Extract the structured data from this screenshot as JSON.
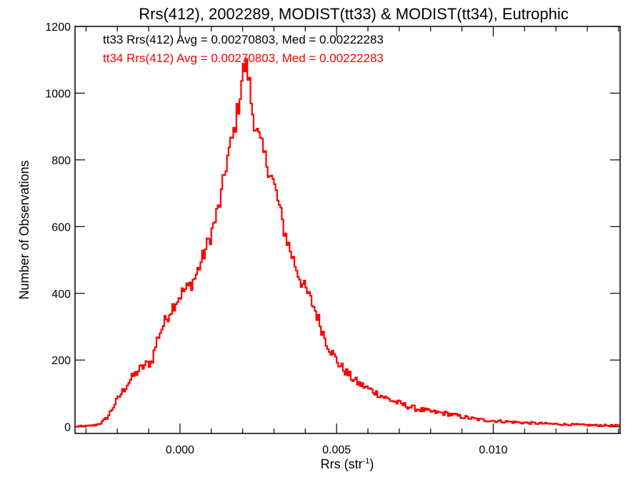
{
  "chart_data": {
    "type": "histogram",
    "title": "Rrs(412), 2002289, MODIST(tt33) & MODIST(tt34), Eutrophic",
    "xlabel": "Rrs (str",
    "xlabel_sup": "-1",
    "xlabel_close": ")",
    "ylabel": "Number of Observations",
    "xlim": [
      -0.00335,
      0.01405
    ],
    "ylim": [
      -20,
      1200
    ],
    "x_ticks": [
      0.0,
      0.005,
      0.01
    ],
    "x_tick_labels": [
      "0.000",
      "0.005",
      "0.010"
    ],
    "y_ticks": [
      0,
      200,
      400,
      600,
      800,
      1000,
      1200
    ],
    "y_tick_labels": [
      "0",
      "200",
      "400",
      "600",
      "800",
      "1000",
      "1200"
    ],
    "annotations": [
      {
        "text": "tt33 Rrs(412) Avg = 0.00270803, Med = 0.00222283",
        "color": "#000000"
      },
      {
        "text": "tt34 Rrs(412) Avg = 0.00270803, Med = 0.00222283",
        "color": "#ff0000"
      }
    ],
    "bin_width": 5e-05,
    "series": [
      {
        "name": "tt33",
        "color": "#000000"
      },
      {
        "name": "tt34",
        "color": "#ff0000"
      }
    ],
    "shape_points": [
      [
        -0.00335,
        0
      ],
      [
        -0.0029,
        2
      ],
      [
        -0.0027,
        5
      ],
      [
        -0.0025,
        12
      ],
      [
        -0.0023,
        30
      ],
      [
        -0.0021,
        65
      ],
      [
        -0.0019,
        95
      ],
      [
        -0.0017,
        125
      ],
      [
        -0.0015,
        150
      ],
      [
        -0.0013,
        170
      ],
      [
        -0.0011,
        185
      ],
      [
        -0.0009,
        195
      ],
      [
        -0.0007,
        270
      ],
      [
        -0.0005,
        310
      ],
      [
        -0.0003,
        350
      ],
      [
        -0.0001,
        380
      ],
      [
        0.0001,
        405
      ],
      [
        0.0003,
        420
      ],
      [
        0.0005,
        450
      ],
      [
        0.0007,
        500
      ],
      [
        0.0009,
        550
      ],
      [
        0.0011,
        610
      ],
      [
        0.0013,
        680
      ],
      [
        0.0015,
        800
      ],
      [
        0.0017,
        870
      ],
      [
        0.0019,
        980
      ],
      [
        0.002,
        1060
      ],
      [
        0.0021,
        1085
      ],
      [
        0.0022,
        1050
      ],
      [
        0.0023,
        950
      ],
      [
        0.0025,
        870
      ],
      [
        0.0027,
        810
      ],
      [
        0.0029,
        760
      ],
      [
        0.0031,
        690
      ],
      [
        0.0033,
        600
      ],
      [
        0.0035,
        535
      ],
      [
        0.0037,
        480
      ],
      [
        0.0039,
        430
      ],
      [
        0.0041,
        395
      ],
      [
        0.0043,
        355
      ],
      [
        0.0045,
        300
      ],
      [
        0.0047,
        250
      ],
      [
        0.0049,
        215
      ],
      [
        0.0051,
        185
      ],
      [
        0.0053,
        165
      ],
      [
        0.0055,
        145
      ],
      [
        0.0057,
        130
      ],
      [
        0.006,
        115
      ],
      [
        0.0063,
        100
      ],
      [
        0.0066,
        85
      ],
      [
        0.007,
        70
      ],
      [
        0.0075,
        55
      ],
      [
        0.008,
        45
      ],
      [
        0.0085,
        40
      ],
      [
        0.009,
        30
      ],
      [
        0.0095,
        22
      ],
      [
        0.01,
        18
      ],
      [
        0.011,
        12
      ],
      [
        0.012,
        8
      ],
      [
        0.013,
        5
      ],
      [
        0.01405,
        3
      ]
    ]
  }
}
